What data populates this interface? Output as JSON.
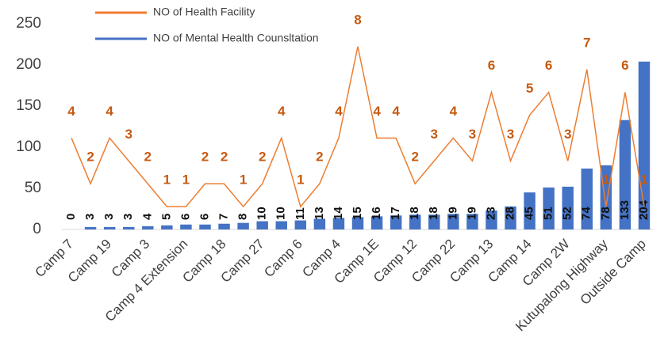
{
  "chart_data": {
    "type": "combo",
    "categories": [
      "Camp 7",
      null,
      "Camp 19",
      null,
      "Camp 3",
      null,
      "Camp 4 Extension",
      null,
      "Camp 18",
      null,
      "Camp 27",
      null,
      "Camp 6",
      null,
      "Camp 4",
      null,
      "Camp 1E",
      null,
      "Camp 12",
      null,
      "Camp 22",
      null,
      "Camp 13",
      null,
      "Camp 14",
      null,
      "Camp 2W",
      null,
      "Kutupalong Highway",
      null,
      "Outside Camp"
    ],
    "series": [
      {
        "name": "NO of Health Facility",
        "type": "line",
        "axis": "y2",
        "color": "#ed7d31",
        "values": [
          4,
          2,
          4,
          3,
          2,
          1,
          1,
          2,
          2,
          1,
          2,
          4,
          1,
          2,
          4,
          8,
          4,
          4,
          2,
          3,
          4,
          3,
          6,
          3,
          5,
          6,
          3,
          7,
          1,
          6,
          1
        ]
      },
      {
        "name": "NO of Mental Health Counsltation",
        "type": "bar",
        "color": "#4472c4",
        "values": [
          0,
          3,
          3,
          3,
          4,
          5,
          6,
          6,
          7,
          8,
          10,
          10,
          11,
          13,
          14,
          15,
          16,
          17,
          18,
          18,
          19,
          19,
          23,
          28,
          45,
          51,
          52,
          74,
          78,
          133,
          204
        ]
      }
    ],
    "ylim": [
      0,
      250
    ],
    "yticks": [
      0,
      50,
      100,
      150,
      200,
      250
    ],
    "y2lim": [
      0,
      9
    ],
    "legend": "top"
  }
}
